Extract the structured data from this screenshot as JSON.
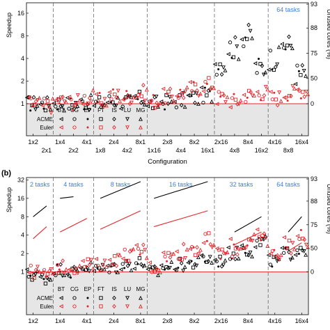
{
  "chart_data": [
    {
      "type": "scatter",
      "panel_label": "",
      "yaxis": {
        "label": "Speedup",
        "ticks": [
          "1",
          "2",
          "4",
          "8",
          "16"
        ],
        "log_base": 2,
        "range": [
          0.375,
          22
        ]
      },
      "y2axis": {
        "label": "Unused cores (%)",
        "ticks": [
          "0",
          "50",
          "75",
          "88",
          "93"
        ]
      },
      "xlabel": "Configuration",
      "configurations": [
        "1x2",
        "2x1",
        "1x4",
        "2x2",
        "4x1",
        "1x8",
        "2x4",
        "4x2",
        "8x1",
        "1x16",
        "2x8",
        "4x4",
        "8x2",
        "16x1",
        "2x16",
        "4x8",
        "8x4",
        "16x2",
        "4x16",
        "8x8",
        "16x4"
      ],
      "tick_rows": {
        "top": [
          "1x2",
          "1x4",
          "4x1",
          "2x4",
          "8x1",
          "2x8",
          "8x2",
          "2x16",
          "8x4",
          "4x16",
          "16x4"
        ],
        "bottom": [
          "2x1",
          "2x2",
          "1x8",
          "4x2",
          "1x16",
          "4x4",
          "16x1",
          "4x8",
          "16x2",
          "8x8"
        ]
      },
      "group_labels": [
        "",
        "",
        "",
        "",
        "",
        "64 tasks"
      ],
      "group_bounds": [
        0,
        2,
        5,
        9,
        14,
        18,
        21
      ],
      "legend": {
        "benchmarks": [
          "BT",
          "CG",
          "EP",
          "FT",
          "IS",
          "LU",
          "MG"
        ],
        "systems": [
          "ACME",
          "Euler"
        ],
        "placement": "bottom-left"
      },
      "series": [
        {
          "name": "ACME",
          "color": "#000000",
          "values": [
            1.0,
            0.98,
            1.02,
            1.0,
            1.03,
            1.0,
            1.1,
            1.05,
            1.15,
            1.0,
            1.05,
            1.1,
            1.2,
            1.3,
            3.5,
            5.5,
            8.0,
            3.0,
            4.0,
            6.0,
            2.5
          ]
        },
        {
          "name": "Euler",
          "color": "#e8252a",
          "values": [
            1.0,
            0.95,
            1.1,
            1.05,
            1.2,
            1.1,
            1.3,
            1.25,
            1.4,
            1.1,
            1.25,
            1.4,
            1.6,
            1.8,
            1.2,
            1.1,
            1.3,
            1.4,
            1.2,
            1.4,
            1.5
          ]
        }
      ]
    },
    {
      "type": "scatter",
      "panel_label": "(b)",
      "yaxis": {
        "label": "Speedup",
        "ticks": [
          "1",
          "2",
          "4",
          "8",
          "16",
          "32"
        ],
        "log_base": 2,
        "range": [
          0.2,
          35
        ]
      },
      "y2axis": {
        "label": "Unused cores (%)",
        "ticks": [
          "0",
          "50",
          "75",
          "88",
          "93"
        ]
      },
      "xlabel": "",
      "configurations": [
        "1x2",
        "2x1",
        "1x4",
        "2x2",
        "4x1",
        "1x8",
        "2x4",
        "4x2",
        "8x1",
        "1x16",
        "2x8",
        "4x4",
        "8x2",
        "16x1",
        "2x16",
        "4x8",
        "8x4",
        "16x2",
        "4x16",
        "8x8",
        "16x4"
      ],
      "tick_rows": {
        "top": [
          "1x2",
          "1x4",
          "4x1",
          "2x4",
          "8x1",
          "2x8",
          "8x2",
          "2x16",
          "8x4",
          "4x16",
          "16x4"
        ],
        "bottom": []
      },
      "group_labels": [
        "2 tasks",
        "4 tasks",
        "8 tasks",
        "16 tasks",
        "32 tasks",
        "64 tasks"
      ],
      "group_bounds": [
        0,
        2,
        5,
        9,
        14,
        18,
        21
      ],
      "legend": {
        "benchmarks": [
          "BT",
          "CG",
          "EP",
          "FT",
          "IS",
          "LU",
          "MG"
        ],
        "systems": [
          "ACME",
          "Euler"
        ],
        "placement": "bottom-left"
      },
      "series": [
        {
          "name": "ACME",
          "color": "#000000",
          "values": [
            0.9,
            0.8,
            1.1,
            1.0,
            1.2,
            1.1,
            1.2,
            1.3,
            1.4,
            1.0,
            1.2,
            1.3,
            1.4,
            1.6,
            1.5,
            2.0,
            2.5,
            3.0,
            1.5,
            2.0,
            2.5
          ]
        },
        {
          "name": "Euler",
          "color": "#e8252a",
          "values": [
            1.0,
            0.9,
            1.2,
            1.2,
            1.3,
            1.3,
            1.6,
            1.9,
            2.2,
            1.2,
            1.8,
            2.2,
            2.6,
            3.0,
            2.0,
            2.5,
            3.0,
            3.5,
            2.0,
            2.8,
            3.5
          ]
        }
      ],
      "ideal_lines": [
        {
          "name": "ACME",
          "color": "#000000",
          "points": [
            [
              0,
              8.0
            ],
            [
              1,
              12.0
            ],
            [
              2,
              16.0
            ],
            [
              3,
              17.0
            ],
            [
              5,
              16.0
            ],
            [
              8,
              30.0
            ],
            [
              9,
              16.0
            ],
            [
              13,
              30.0
            ],
            [
              15,
              4.5
            ],
            [
              17,
              8.0
            ],
            [
              19,
              4.5
            ],
            [
              20,
              8.0
            ]
          ]
        },
        {
          "name": "Euler",
          "color": "#e8252a",
          "points": [
            [
              0,
              3.5
            ],
            [
              1,
              5.5
            ],
            [
              2,
              4.5
            ],
            [
              4,
              7.5
            ],
            [
              5,
              5.0
            ],
            [
              8,
              10.0
            ],
            [
              9,
              5.5
            ],
            [
              13,
              10.0
            ],
            [
              15,
              2.8
            ],
            [
              17,
              4.5
            ],
            [
              19,
              2.2
            ],
            [
              20,
              3.0
            ]
          ]
        }
      ]
    }
  ]
}
